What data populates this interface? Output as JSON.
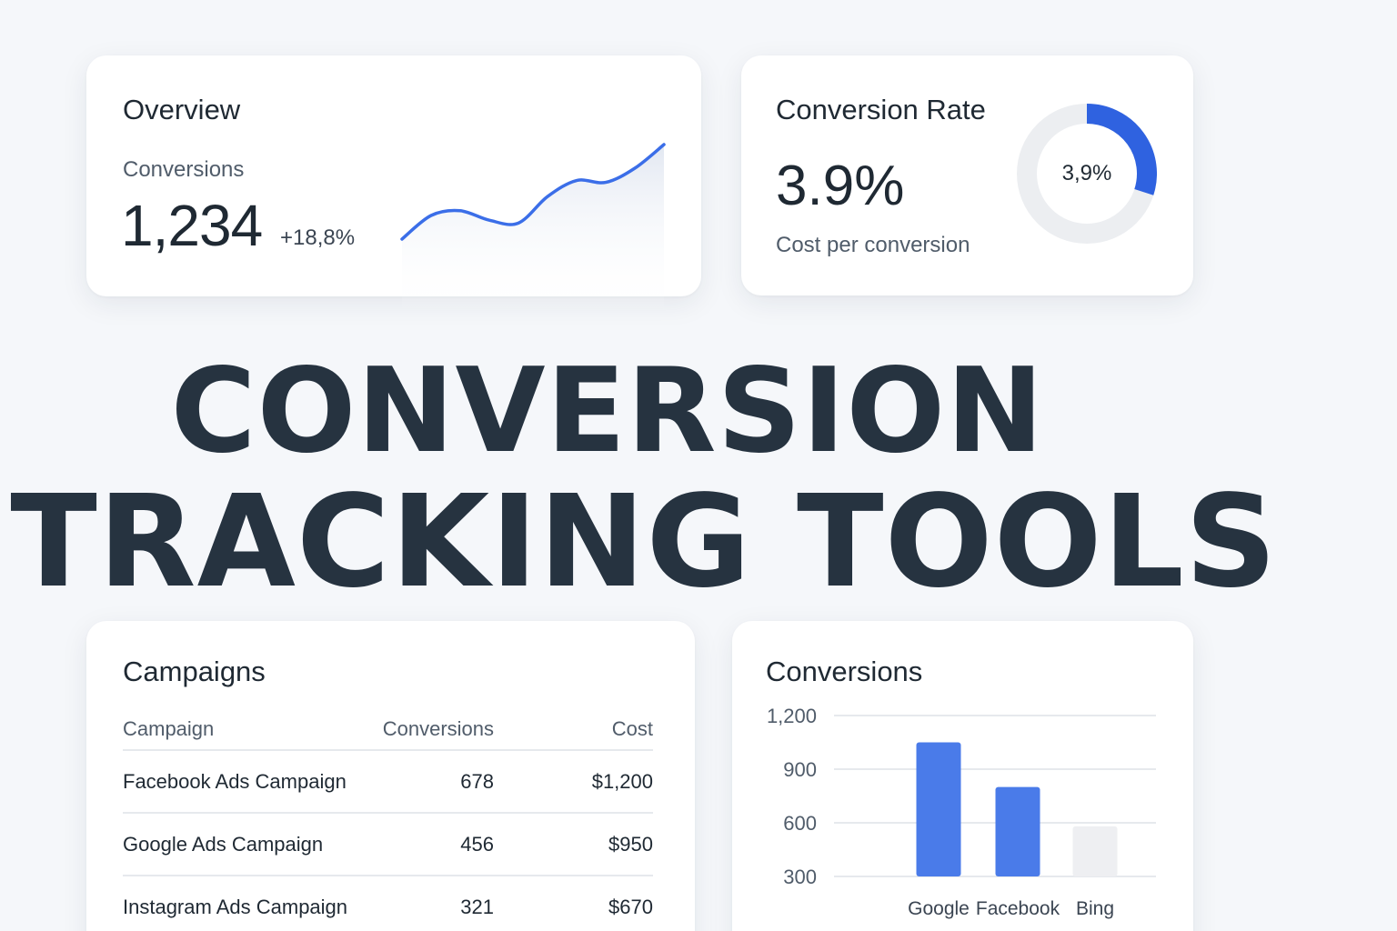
{
  "overview": {
    "title": "Overview",
    "metric_label": "Conversions",
    "metric_value": "1,234",
    "metric_change": "+18,8%",
    "sparkline": {
      "type": "line",
      "values": [
        0.0,
        0.25,
        0.3,
        0.2,
        0.17,
        0.45,
        0.62,
        0.6,
        0.75,
        1.0
      ]
    },
    "accent_color": "#3b6ee8"
  },
  "conversion_rate": {
    "title": "Conversion Rate",
    "value": "3.9%",
    "subtitle": "Cost per conversion",
    "donut_label": "3,9%",
    "donut_fraction": 0.3,
    "accent_color": "#2f62e0",
    "track_color": "#eceef1"
  },
  "headline": {
    "line1": "CONVERSION",
    "line2": "TRACKING TOOLS"
  },
  "campaigns": {
    "title": "Campaigns",
    "columns": [
      "Campaign",
      "Conversions",
      "Cost"
    ],
    "rows": [
      [
        "Facebook Ads Campaign",
        "678",
        "$1,200"
      ],
      [
        "Google Ads Campaign",
        "456",
        "$950"
      ],
      [
        "Instagram Ads Campaign",
        "321",
        "$670"
      ]
    ]
  },
  "chart_data": {
    "type": "bar",
    "title": "Conversions",
    "categories": [
      "Google",
      "Facebook",
      "Bing"
    ],
    "values": [
      1050,
      800,
      580
    ],
    "ylim": [
      200,
      1200
    ],
    "yticks": [
      300,
      600,
      900,
      1200
    ],
    "ytick_labels": [
      "300",
      "600",
      "900",
      "1,200"
    ],
    "grid": true,
    "bar_colors": [
      "#4a7be9",
      "#4a7be9",
      "#eeeff2"
    ]
  }
}
